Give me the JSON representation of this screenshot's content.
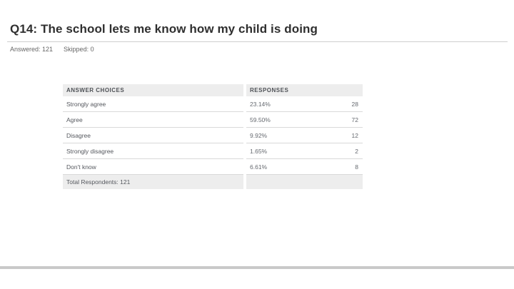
{
  "chart_data": {
    "type": "table",
    "title": "Q14: The school lets me know how my child is doing",
    "answered_label": "Answered: 121",
    "skipped_label": "Skipped: 0",
    "answered": 121,
    "skipped": 0,
    "columns": [
      "ANSWER CHOICES",
      "RESPONSES"
    ],
    "rows": [
      {
        "label": "Strongly agree",
        "percent": "23.14%",
        "count": 28
      },
      {
        "label": "Agree",
        "percent": "59.50%",
        "count": 72
      },
      {
        "label": "Disagree",
        "percent": "9.92%",
        "count": 12
      },
      {
        "label": "Strongly disagree",
        "percent": "1.65%",
        "count": 2
      },
      {
        "label": "Don't know",
        "percent": "6.61%",
        "count": 8
      }
    ],
    "footer_label": "Total Respondents: 121",
    "total_respondents": 121
  },
  "colors": {
    "header_bg": "#ededed",
    "row_border": "#d9d9d9",
    "text_dark": "#55585e",
    "text_muted": "#666666",
    "title_text": "#2f2f2f",
    "bottom_bar": "#c9c9c9",
    "title_rule": "#cfcfcf"
  }
}
